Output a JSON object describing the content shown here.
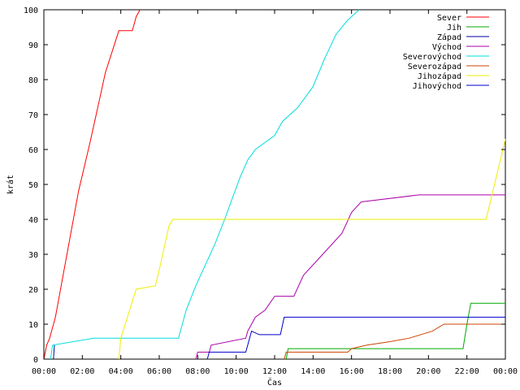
{
  "chart_data": {
    "type": "line",
    "title": "",
    "xlabel": "Čas",
    "ylabel": "krát",
    "xlim": [
      0,
      24
    ],
    "ylim": [
      0,
      100
    ],
    "x_ticks": [
      {
        "value": 0,
        "label": "00:00"
      },
      {
        "value": 2,
        "label": "02:00"
      },
      {
        "value": 4,
        "label": "04:00"
      },
      {
        "value": 6,
        "label": "06:00"
      },
      {
        "value": 8,
        "label": "08:00"
      },
      {
        "value": 10,
        "label": "10:00"
      },
      {
        "value": 12,
        "label": "12:00"
      },
      {
        "value": 14,
        "label": "14:00"
      },
      {
        "value": 16,
        "label": "16:00"
      },
      {
        "value": 18,
        "label": "18:00"
      },
      {
        "value": 20,
        "label": "20:00"
      },
      {
        "value": 22,
        "label": "22:00"
      },
      {
        "value": 24,
        "label": "00:00"
      }
    ],
    "y_ticks": [
      {
        "value": 0,
        "label": "0"
      },
      {
        "value": 10,
        "label": "10"
      },
      {
        "value": 20,
        "label": "20"
      },
      {
        "value": 30,
        "label": "30"
      },
      {
        "value": 40,
        "label": "40"
      },
      {
        "value": 50,
        "label": "50"
      },
      {
        "value": 60,
        "label": "60"
      },
      {
        "value": 70,
        "label": "70"
      },
      {
        "value": 80,
        "label": "80"
      },
      {
        "value": 90,
        "label": "90"
      },
      {
        "value": 100,
        "label": "100"
      }
    ],
    "grid": false,
    "legend_position": "top-right",
    "series": [
      {
        "name": "Sever",
        "color": "#ff0000",
        "x": [
          0,
          0.15,
          0.3,
          0.6,
          1.2,
          1.8,
          2.4,
          2.8,
          3.2,
          3.9,
          4.6,
          4.8,
          5.0
        ],
        "y": [
          0,
          4,
          6,
          12,
          30,
          48,
          62,
          72,
          82,
          94,
          94,
          98,
          100
        ]
      },
      {
        "name": "Jih",
        "color": "#00aa00",
        "x": [
          12.6,
          12.7,
          16.5,
          21.8,
          22.0,
          22.2,
          24
        ],
        "y": [
          0,
          3,
          3,
          3,
          10,
          16,
          16
        ]
      },
      {
        "name": "Západ",
        "color": "#0000aa",
        "x": [
          0.5,
          0.55
        ],
        "y": [
          0,
          4
        ]
      },
      {
        "name": "Východ",
        "color": "#aa00aa",
        "x": [
          7.9,
          8.0,
          8.6,
          8.7,
          10.5,
          10.6,
          11.0,
          11.5,
          12.0,
          13.0,
          13.5,
          14.5,
          15.5,
          16.0,
          16.5,
          19.5,
          24
        ],
        "y": [
          0,
          2,
          2,
          4,
          6,
          8,
          12,
          14,
          18,
          18,
          24,
          30,
          36,
          42,
          45,
          47,
          47
        ]
      },
      {
        "name": "Severovýchod",
        "color": "#00dddd",
        "x": [
          0.35,
          0.45,
          2.6,
          7.0,
          7.4,
          7.9,
          8.4,
          8.9,
          9.4,
          9.8,
          10.2,
          10.6,
          11.0,
          12.0,
          12.4,
          13.2,
          14.0,
          14.6,
          15.2,
          15.8,
          16.4
        ],
        "y": [
          0,
          4,
          6,
          6,
          14,
          21,
          27,
          33,
          40,
          46,
          52,
          57,
          60,
          64,
          68,
          72,
          78,
          86,
          93,
          97,
          100
        ]
      },
      {
        "name": "Severozápad",
        "color": "#cc4400",
        "x": [
          12.5,
          12.6,
          15.8,
          16.0,
          16.8,
          18.0,
          19.0,
          20.2,
          20.8,
          21.8,
          24
        ],
        "y": [
          0,
          2,
          2,
          3,
          4,
          5,
          6,
          8,
          10,
          10,
          10
        ]
      },
      {
        "name": "Jihozápad",
        "color": "#eeee00",
        "x": [
          3.9,
          4.0,
          4.8,
          5.8,
          6.1,
          6.5,
          6.7,
          23.0,
          24
        ],
        "y": [
          0,
          6,
          20,
          21,
          28,
          38,
          40,
          40,
          63
        ]
      },
      {
        "name": "Jihovýchod",
        "color": "#0000cc",
        "x": [
          8.5,
          8.6,
          10.5,
          10.8,
          11.2,
          12.3,
          12.5,
          15.0,
          19.0,
          24
        ],
        "y": [
          0,
          2,
          2,
          8,
          7,
          7,
          12,
          12,
          12,
          12
        ]
      }
    ]
  }
}
